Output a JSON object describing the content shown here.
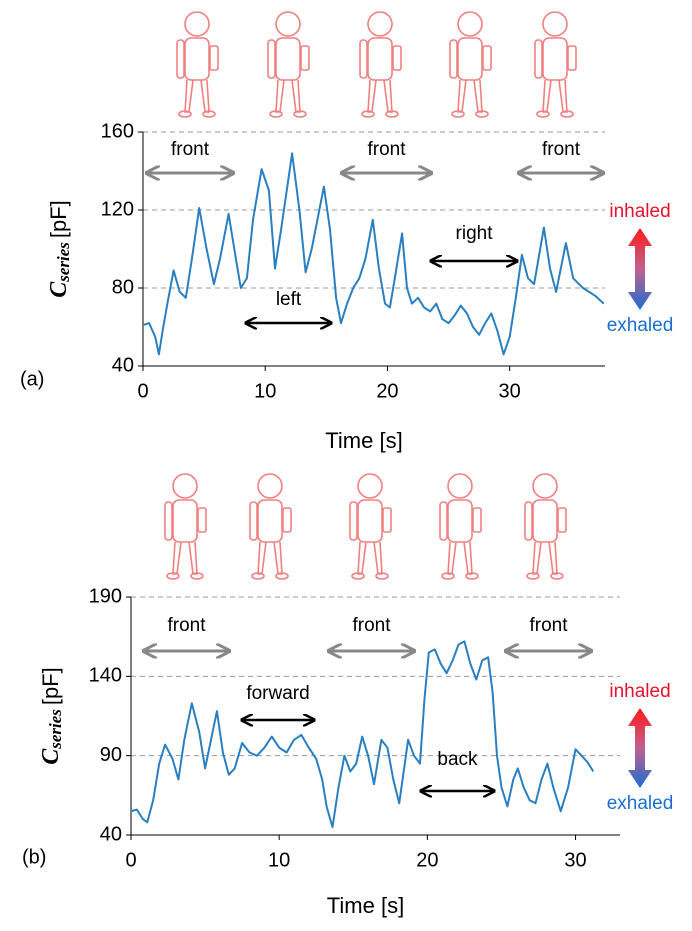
{
  "chart_data": [
    {
      "type": "line",
      "panel_label": "(a)",
      "xlabel": "Time [s]",
      "ylabel_symbol": "C",
      "ylabel_subscript": "series",
      "ylabel_unit": "[pF]",
      "xlim": [
        0,
        37.8
      ],
      "xticks": [
        0,
        10,
        20,
        30
      ],
      "ylim": [
        40,
        160
      ],
      "yticks": [
        40,
        80,
        120,
        160
      ],
      "grid": true,
      "annotations": [
        "front",
        "left",
        "front",
        "right",
        "front"
      ],
      "inhaled_label": "inhaled",
      "exhaled_label": "exhaled",
      "x": [
        0,
        0.5,
        1.0,
        1.3,
        1.6,
        2.0,
        2.5,
        3.0,
        3.5,
        4.0,
        4.6,
        5.2,
        5.8,
        6.3,
        7.0,
        7.6,
        8.0,
        8.5,
        9.0,
        9.7,
        10.3,
        10.8,
        11.3,
        12.2,
        12.8,
        13.3,
        13.8,
        14.8,
        15.3,
        15.8,
        16.2,
        16.7,
        17.2,
        17.7,
        18.2,
        18.8,
        19.3,
        19.8,
        20.2,
        20.6,
        21.2,
        21.6,
        22.0,
        22.5,
        23.0,
        23.5,
        24.0,
        24.5,
        25.0,
        25.5,
        26.0,
        26.5,
        27.0,
        27.5,
        28.0,
        28.5,
        29.0,
        29.5,
        30.0,
        30.5,
        31.0,
        31.5,
        32.0,
        32.8,
        33.3,
        33.8,
        34.6,
        35.2,
        36.0,
        37.0,
        37.7
      ],
      "series": [
        {
          "color": "#2a7fc0",
          "values": [
            61,
            62,
            55,
            46,
            58,
            72,
            89,
            78,
            75,
            95,
            121,
            100,
            82,
            95,
            118,
            95,
            80,
            85,
            115,
            141,
            130,
            90,
            110,
            149,
            120,
            88,
            100,
            132,
            110,
            75,
            62,
            72,
            80,
            85,
            95,
            115,
            90,
            72,
            70,
            85,
            108,
            80,
            72,
            75,
            70,
            68,
            72,
            64,
            62,
            66,
            71,
            67,
            60,
            56,
            62,
            67,
            58,
            46,
            55,
            75,
            97,
            85,
            82,
            111,
            90,
            78,
            103,
            85,
            80,
            76,
            72
          ]
        }
      ]
    },
    {
      "type": "line",
      "panel_label": "(b)",
      "xlabel": "Time [s]",
      "ylabel_symbol": "C",
      "ylabel_subscript": "series",
      "ylabel_unit": "[pF]",
      "xlim": [
        0,
        33
      ],
      "xticks": [
        0,
        10,
        20,
        30
      ],
      "ylim": [
        40,
        190
      ],
      "yticks": [
        40,
        90,
        140,
        190
      ],
      "grid": true,
      "annotations": [
        "front",
        "forward",
        "front",
        "back",
        "front"
      ],
      "inhaled_label": "inhaled",
      "exhaled_label": "exhaled",
      "x": [
        0,
        0.4,
        0.8,
        1.1,
        1.5,
        1.9,
        2.3,
        2.8,
        3.2,
        3.6,
        4.1,
        4.6,
        5.0,
        5.4,
        5.8,
        6.2,
        6.6,
        7.0,
        7.5,
        8.0,
        8.5,
        9.0,
        9.5,
        10.0,
        10.5,
        11.0,
        11.5,
        12.0,
        12.5,
        12.9,
        13.2,
        13.6,
        14.0,
        14.4,
        14.8,
        15.2,
        15.6,
        16.0,
        16.4,
        16.9,
        17.3,
        17.7,
        18.1,
        18.4,
        18.7,
        19.1,
        19.5,
        19.8,
        20.1,
        20.5,
        20.9,
        21.3,
        21.7,
        22.1,
        22.5,
        22.9,
        23.3,
        23.7,
        24.1,
        24.4,
        24.7,
        25.0,
        25.4,
        25.8,
        26.1,
        26.5,
        26.9,
        27.3,
        27.7,
        28.1,
        28.5,
        29.0,
        29.5,
        30.0,
        30.4,
        30.8,
        31.2
      ],
      "series": [
        {
          "color": "#2a7fc0",
          "values": [
            55,
            56,
            50,
            48,
            62,
            85,
            97,
            88,
            75,
            100,
            123,
            105,
            82,
            100,
            118,
            92,
            78,
            82,
            98,
            92,
            90,
            95,
            102,
            95,
            92,
            100,
            103,
            95,
            88,
            75,
            58,
            45,
            70,
            90,
            80,
            85,
            102,
            90,
            72,
            100,
            95,
            75,
            60,
            80,
            100,
            90,
            85,
            125,
            155,
            157,
            148,
            142,
            150,
            160,
            162,
            148,
            138,
            150,
            152,
            130,
            90,
            70,
            58,
            75,
            82,
            70,
            62,
            60,
            75,
            85,
            70,
            55,
            70,
            94,
            90,
            86,
            80
          ]
        }
      ]
    }
  ]
}
